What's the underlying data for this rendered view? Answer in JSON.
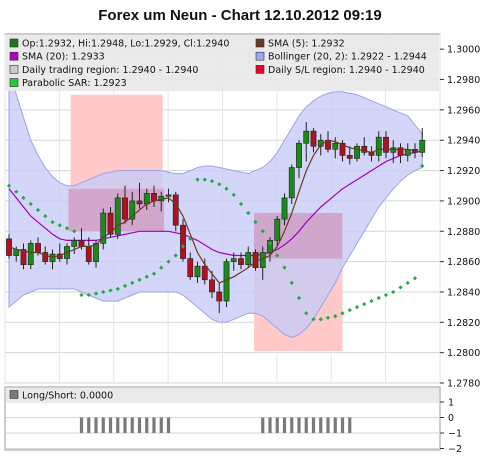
{
  "chart_data": [
    {
      "type": "candlestick",
      "title": "Forex um Neun - Chart 12.10.2012 09:19",
      "ylim": [
        1.278,
        1.301
      ],
      "yticks": [
        "1.2780",
        "1.2800",
        "1.2820",
        "1.2840",
        "1.2860",
        "1.2880",
        "1.2900",
        "1.2920",
        "1.2940",
        "1.2960",
        "1.2980",
        "1.3000"
      ],
      "legend": [
        {
          "label": "Op:1.2932, Hi:1.2948, Lo:1.2929, Cl:1.2940",
          "color": "#1a7a1a",
          "side": "left"
        },
        {
          "label": "SMA (5): 1.2932",
          "color": "#6b3a1f",
          "side": "right"
        },
        {
          "label": "SMA (20): 1.2933",
          "color": "#b000c0",
          "side": "left"
        },
        {
          "label": "Bollinger (20, 2): 1.2922 - 1.2944",
          "color": "#9da6ee",
          "side": "right"
        },
        {
          "label": "Daily trading region: 1.2940 - 1.2940",
          "color": "#cccccc",
          "side": "left"
        },
        {
          "label": "Daily S/L region: 1.2940 - 1.2940",
          "color": "#e8002a",
          "side": "right"
        },
        {
          "label": "Parabolic SAR: 1.2923",
          "color": "#22cc33",
          "side": "left"
        }
      ],
      "candles": [
        [
          1.2875,
          1.2878,
          1.2862,
          1.2864
        ],
        [
          1.2864,
          1.287,
          1.286,
          1.2868
        ],
        [
          1.2868,
          1.2872,
          1.2855,
          1.2858
        ],
        [
          1.2858,
          1.2874,
          1.2855,
          1.2872
        ],
        [
          1.2872,
          1.2876,
          1.2864,
          1.2866
        ],
        [
          1.2866,
          1.287,
          1.2858,
          1.286
        ],
        [
          1.286,
          1.2868,
          1.2855,
          1.2865
        ],
        [
          1.2865,
          1.2872,
          1.286,
          1.2862
        ],
        [
          1.2862,
          1.2872,
          1.2858,
          1.287
        ],
        [
          1.287,
          1.2876,
          1.2865,
          1.2874
        ],
        [
          1.2874,
          1.2882,
          1.2868,
          1.287
        ],
        [
          1.287,
          1.2876,
          1.2858,
          1.286
        ],
        [
          1.286,
          1.2874,
          1.2856,
          1.2872
        ],
        [
          1.2872,
          1.2895,
          1.2868,
          1.2892
        ],
        [
          1.2892,
          1.2896,
          1.2876,
          1.2878
        ],
        [
          1.2878,
          1.2905,
          1.2875,
          1.2902
        ],
        [
          1.2902,
          1.291,
          1.2885,
          1.2888
        ],
        [
          1.2888,
          1.2906,
          1.2884,
          1.29
        ],
        [
          1.29,
          1.2912,
          1.2895,
          1.2898
        ],
        [
          1.2898,
          1.2908,
          1.2894,
          1.2905
        ],
        [
          1.2905,
          1.291,
          1.2896,
          1.29
        ],
        [
          1.29,
          1.2906,
          1.2893,
          1.2903
        ],
        [
          1.2903,
          1.2908,
          1.2899,
          1.2904
        ],
        [
          1.2904,
          1.2906,
          1.288,
          1.2884
        ],
        [
          1.2884,
          1.2888,
          1.286,
          1.2862
        ],
        [
          1.2862,
          1.2866,
          1.2848,
          1.285
        ],
        [
          1.285,
          1.286,
          1.2846,
          1.2857
        ],
        [
          1.2857,
          1.2862,
          1.2845,
          1.2848
        ],
        [
          1.2848,
          1.2854,
          1.2836,
          1.284
        ],
        [
          1.284,
          1.2846,
          1.2826,
          1.2834
        ],
        [
          1.2834,
          1.2862,
          1.283,
          1.286
        ],
        [
          1.286,
          1.2866,
          1.2854,
          1.2862
        ],
        [
          1.2862,
          1.2866,
          1.2855,
          1.2858
        ],
        [
          1.2858,
          1.287,
          1.2856,
          1.2866
        ],
        [
          1.2866,
          1.2868,
          1.2854,
          1.2856
        ],
        [
          1.2856,
          1.287,
          1.2848,
          1.2866
        ],
        [
          1.2866,
          1.2876,
          1.286,
          1.2874
        ],
        [
          1.2874,
          1.289,
          1.287,
          1.2888
        ],
        [
          1.2888,
          1.2905,
          1.2884,
          1.2902
        ],
        [
          1.2902,
          1.2924,
          1.2898,
          1.2922
        ],
        [
          1.2922,
          1.294,
          1.2915,
          1.2938
        ],
        [
          1.2938,
          1.2952,
          1.2926,
          1.2946
        ],
        [
          1.2946,
          1.2948,
          1.2932,
          1.2936
        ],
        [
          1.2936,
          1.2944,
          1.293,
          1.294
        ],
        [
          1.294,
          1.2946,
          1.2932,
          1.2934
        ],
        [
          1.2934,
          1.2942,
          1.2928,
          1.2938
        ],
        [
          1.2938,
          1.294,
          1.2926,
          1.293
        ],
        [
          1.293,
          1.2936,
          1.2924,
          1.2928
        ],
        [
          1.2928,
          1.2938,
          1.2926,
          1.2936
        ],
        [
          1.2936,
          1.2942,
          1.293,
          1.2932
        ],
        [
          1.2932,
          1.2936,
          1.2926,
          1.293
        ],
        [
          1.293,
          1.2946,
          1.2926,
          1.2942
        ],
        [
          1.2942,
          1.2946,
          1.2928,
          1.2932
        ],
        [
          1.2932,
          1.294,
          1.2925,
          1.2935
        ],
        [
          1.2935,
          1.2938,
          1.2925,
          1.293
        ],
        [
          1.293,
          1.2938,
          1.2926,
          1.2934
        ],
        [
          1.2934,
          1.2938,
          1.2928,
          1.2932
        ],
        [
          1.2932,
          1.2948,
          1.2929,
          1.294
        ]
      ],
      "sma5": [
        1.287,
        1.2868,
        1.2867,
        1.2866,
        1.2866,
        1.2864,
        1.2863,
        1.2864,
        1.2866,
        1.2868,
        1.287,
        1.287,
        1.2871,
        1.2876,
        1.2879,
        1.2884,
        1.2886,
        1.289,
        1.2894,
        1.2898,
        1.29,
        1.2901,
        1.2902,
        1.2898,
        1.289,
        1.2878,
        1.2866,
        1.2858,
        1.2852,
        1.2846,
        1.2848,
        1.285,
        1.2853,
        1.2856,
        1.286,
        1.2862,
        1.2864,
        1.287,
        1.288,
        1.2892,
        1.2906,
        1.292,
        1.293,
        1.2937,
        1.294,
        1.2939,
        1.2937,
        1.2935,
        1.2934,
        1.2933,
        1.2932,
        1.2934,
        1.2934,
        1.2934,
        1.2934,
        1.2934,
        1.2933,
        1.2932
      ],
      "sma20": [
        1.2908,
        1.2902,
        1.2896,
        1.289,
        1.2886,
        1.2882,
        1.2878,
        1.2875,
        1.2874,
        1.2874,
        1.2874,
        1.2874,
        1.2874,
        1.2875,
        1.2876,
        1.2877,
        1.2878,
        1.2879,
        1.288,
        1.288,
        1.288,
        1.288,
        1.288,
        1.2879,
        1.2878,
        1.2876,
        1.2874,
        1.2871,
        1.2868,
        1.2866,
        1.2865,
        1.2864,
        1.2864,
        1.2864,
        1.2864,
        1.2865,
        1.2866,
        1.2868,
        1.2871,
        1.2875,
        1.288,
        1.2886,
        1.2891,
        1.2896,
        1.29,
        1.2904,
        1.2908,
        1.2911,
        1.2914,
        1.2917,
        1.292,
        1.2923,
        1.2926,
        1.2928,
        1.293,
        1.2931,
        1.2932,
        1.2933
      ],
      "boll_upper": [
        1.299,
        1.297,
        1.2955,
        1.294,
        1.293,
        1.2922,
        1.2916,
        1.2912,
        1.291,
        1.291,
        1.2912,
        1.2914,
        1.2916,
        1.2918,
        1.2919,
        1.292,
        1.292,
        1.292,
        1.292,
        1.292,
        1.292,
        1.292,
        1.2919,
        1.2918,
        1.2918,
        1.292,
        1.2922,
        1.2923,
        1.2923,
        1.2922,
        1.2921,
        1.292,
        1.2919,
        1.2918,
        1.292,
        1.2922,
        1.2926,
        1.2932,
        1.294,
        1.2948,
        1.2956,
        1.2962,
        1.2966,
        1.2969,
        1.2971,
        1.2972,
        1.2972,
        1.2971,
        1.297,
        1.2968,
        1.2966,
        1.2964,
        1.2962,
        1.296,
        1.2958,
        1.2956,
        1.295,
        1.2944
      ],
      "boll_lower": [
        1.283,
        1.2834,
        1.2838,
        1.284,
        1.2842,
        1.2842,
        1.2842,
        1.2842,
        1.2842,
        1.2842,
        1.284,
        1.2838,
        1.2836,
        1.2834,
        1.2834,
        1.2834,
        1.2836,
        1.2838,
        1.284,
        1.284,
        1.284,
        1.284,
        1.284,
        1.284,
        1.2838,
        1.2834,
        1.283,
        1.2826,
        1.2822,
        1.282,
        1.282,
        1.2822,
        1.2824,
        1.2826,
        1.2826,
        1.2824,
        1.282,
        1.2816,
        1.2812,
        1.281,
        1.2812,
        1.2816,
        1.2822,
        1.283,
        1.2838,
        1.2846,
        1.2856,
        1.2864,
        1.2872,
        1.288,
        1.2888,
        1.2896,
        1.2902,
        1.2908,
        1.2913,
        1.2917,
        1.292,
        1.2922
      ],
      "psar": [
        1.291,
        1.2906,
        1.2902,
        1.2898,
        1.2894,
        1.289,
        1.2886,
        1.2884,
        1.2882,
        1.288,
        1.2838,
        1.2838,
        1.2839,
        1.284,
        1.2841,
        1.2842,
        1.2844,
        1.2846,
        1.2848,
        1.285,
        1.2852,
        1.2856,
        1.286,
        1.2864,
        1.287,
        1.2875,
        1.2914,
        1.2914,
        1.2913,
        1.2911,
        1.2908,
        1.2904,
        1.2898,
        1.2892,
        1.2886,
        1.288,
        1.2872,
        1.2864,
        1.2856,
        1.2846,
        1.2836,
        1.2826,
        1.2822,
        1.2822,
        1.2823,
        1.2824,
        1.2826,
        1.2828,
        1.283,
        1.2832,
        1.2834,
        1.2836,
        1.2838,
        1.284,
        1.2843,
        1.2846,
        1.2849,
        1.2923
      ]
    },
    {
      "type": "bar",
      "legend": "Long/Short: 0.0000",
      "ylim": [
        -2,
        1
      ],
      "yticks": [
        "1",
        "0",
        "−1",
        "−2"
      ],
      "values": [
        0,
        0,
        0,
        0,
        0,
        0,
        0,
        0,
        0,
        0,
        -1,
        -1,
        -1,
        -1,
        -1,
        -1,
        -1,
        -1,
        -1,
        -1,
        -1,
        -1,
        -1,
        0,
        0,
        0,
        0,
        0,
        0,
        0,
        0,
        0,
        0,
        0,
        0,
        -1,
        -1,
        -1,
        -1,
        -1,
        -1,
        -1,
        -1,
        -1,
        -1,
        -1,
        -1,
        -1,
        0,
        0,
        0,
        0,
        0,
        0,
        0,
        0,
        0,
        0
      ]
    }
  ]
}
